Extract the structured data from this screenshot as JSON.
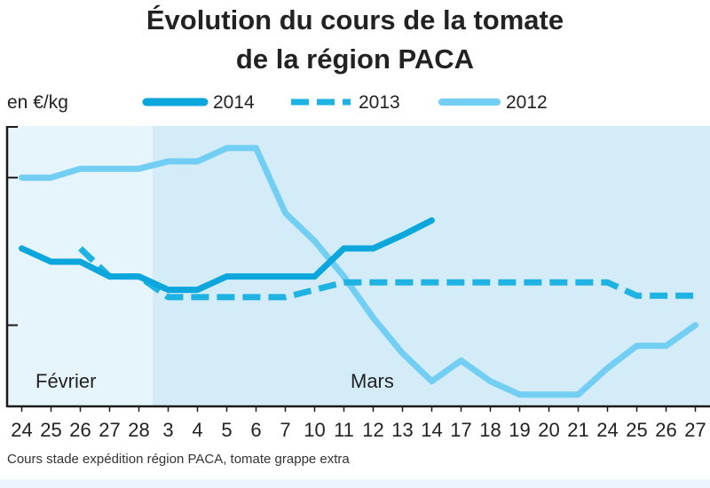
{
  "chart_data": {
    "type": "line",
    "title": [
      "Évolution du cours de la tomate",
      "de la région PACA"
    ],
    "unit": "en €/kg",
    "note": "Cours stade expédition région  PACA, tomate grappe extra",
    "months": [
      "Février",
      "Mars"
    ],
    "categories": [
      "24",
      "25",
      "26",
      "27",
      "28",
      "3",
      "4",
      "5",
      "6",
      "7",
      "10",
      "11",
      "12",
      "13",
      "14",
      "17",
      "18",
      "19",
      "20",
      "21",
      "24",
      "25",
      "26",
      "27"
    ],
    "ylim": [
      0.45,
      2.35
    ],
    "y_ticks": [
      1,
      2
    ],
    "y_tick_labels_shown": false,
    "grid": false,
    "legend_position": "top",
    "series": [
      {
        "name": "2014",
        "style": "solid-thick",
        "color": "#0aa6dc",
        "values": [
          1.52,
          1.43,
          1.43,
          1.33,
          1.33,
          1.24,
          1.24,
          1.33,
          1.33,
          1.33,
          1.33,
          1.52,
          1.52,
          1.61,
          1.71,
          null,
          null,
          null,
          null,
          null,
          null,
          null,
          null,
          null
        ]
      },
      {
        "name": "2013",
        "style": "dashed",
        "color": "#1fb3e3",
        "values": [
          null,
          null,
          1.52,
          1.33,
          1.33,
          1.19,
          1.19,
          1.19,
          1.19,
          1.19,
          1.24,
          1.29,
          1.29,
          1.29,
          1.29,
          1.29,
          1.29,
          1.29,
          1.29,
          1.29,
          1.29,
          1.2,
          1.2,
          1.2
        ]
      },
      {
        "name": "2012",
        "style": "solid-light",
        "color": "#72cff3",
        "values": [
          2.0,
          2.0,
          2.06,
          2.06,
          2.06,
          2.11,
          2.11,
          2.2,
          2.2,
          1.76,
          1.57,
          1.33,
          1.05,
          0.81,
          0.62,
          0.76,
          0.62,
          0.53,
          0.53,
          0.53,
          0.71,
          0.86,
          0.86,
          1.0
        ]
      }
    ],
    "colors": {
      "panel_fevrier": "#e6f4fc",
      "panel_mars": "#d4ecf8",
      "axis": "#1a1a1a",
      "bottom_band": "#ebf5fb"
    }
  }
}
